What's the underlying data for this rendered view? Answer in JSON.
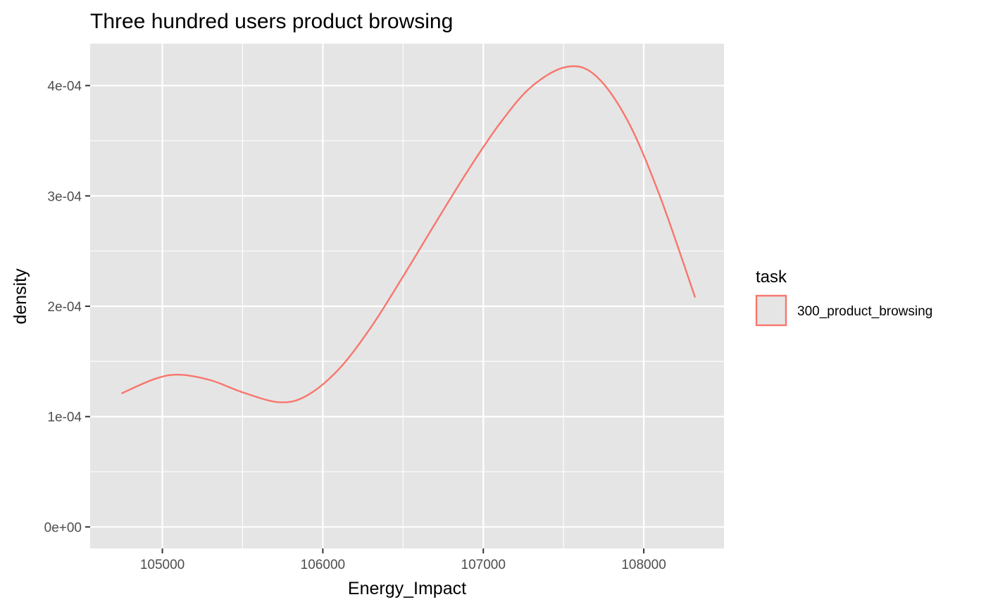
{
  "chart_data": {
    "type": "line",
    "title": "Three hundred users product browsing",
    "xlabel": "Energy_Impact",
    "ylabel": "density",
    "xlim": [
      104550,
      108500
    ],
    "ylim": [
      -1.95e-05,
      0.000438
    ],
    "x_ticks": [
      105000,
      106000,
      107000,
      108000
    ],
    "x_tick_labels": [
      "105000",
      "106000",
      "107000",
      "108000"
    ],
    "y_ticks": [
      0,
      0.0001,
      0.0002,
      0.0003,
      0.0004
    ],
    "y_tick_labels": [
      "0e+00",
      "1e-04",
      "2e-04",
      "3e-04",
      "4e-04"
    ],
    "grid": true,
    "legend": {
      "title": "task",
      "placement": "right"
    },
    "series": [
      {
        "name": "300_product_browsing",
        "color": "#F8766D",
        "x": [
          104745,
          104950,
          105100,
          105300,
          105500,
          105730,
          105900,
          106100,
          106300,
          106500,
          106700,
          106900,
          107100,
          107300,
          107520,
          107700,
          107900,
          108100,
          108320
        ],
        "y": [
          0.000121,
          0.000134,
          0.000138,
          0.000133,
          0.000122,
          0.000113,
          0.000119,
          0.000143,
          0.000181,
          0.000227,
          0.000275,
          0.000322,
          0.000365,
          0.000399,
          0.000417,
          0.000409,
          0.000368,
          0.0003,
          0.000208
        ]
      }
    ]
  }
}
